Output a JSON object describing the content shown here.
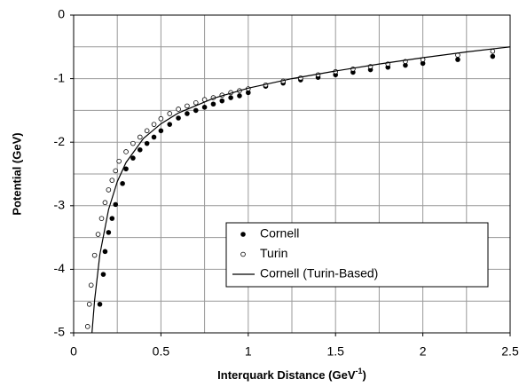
{
  "chart_data": {
    "type": "scatter",
    "x_label": [
      "Interquark Distance (GeV",
      "-1",
      ")"
    ],
    "y_label": "Potential (GeV)",
    "xlim": [
      0,
      2.5
    ],
    "ylim": [
      -5,
      0
    ],
    "xticks": [
      0,
      0.5,
      1,
      1.5,
      2,
      2.5
    ],
    "yticks": [
      -5,
      -4,
      -3,
      -2,
      -1,
      0
    ],
    "x_grid": [
      0.25,
      0.5,
      0.75,
      1,
      1.25,
      1.5,
      1.75,
      2,
      2.25
    ],
    "y_grid": [
      -4.5,
      -4,
      -3.5,
      -3,
      -2.5,
      -2,
      -1.5,
      -1,
      -0.5
    ],
    "grid": true,
    "legend": "lower right",
    "series": [
      {
        "name": "Cornell",
        "color": "#000000",
        "marker": "filled",
        "x": [
          0.15,
          0.17,
          0.18,
          0.2,
          0.22,
          0.24,
          0.28,
          0.3,
          0.34,
          0.38,
          0.42,
          0.46,
          0.5,
          0.55,
          0.6,
          0.65,
          0.7,
          0.75,
          0.8,
          0.85,
          0.9,
          0.95,
          1.0,
          1.1,
          1.2,
          1.3,
          1.4,
          1.5,
          1.6,
          1.7,
          1.8,
          1.9,
          2.0,
          2.2,
          2.4
        ],
        "values": [
          -4.55,
          -4.08,
          -3.72,
          -3.42,
          -3.2,
          -2.98,
          -2.65,
          -2.42,
          -2.25,
          -2.12,
          -2.02,
          -1.92,
          -1.82,
          -1.72,
          -1.62,
          -1.55,
          -1.5,
          -1.45,
          -1.4,
          -1.35,
          -1.3,
          -1.27,
          -1.22,
          -1.12,
          -1.07,
          -1.02,
          -0.98,
          -0.94,
          -0.9,
          -0.86,
          -0.82,
          -0.79,
          -0.76,
          -0.7,
          -0.65
        ]
      },
      {
        "name": "Turin",
        "color": "#000000",
        "marker": "open",
        "x": [
          0.08,
          0.09,
          0.1,
          0.12,
          0.14,
          0.16,
          0.18,
          0.2,
          0.22,
          0.24,
          0.26,
          0.3,
          0.34,
          0.38,
          0.42,
          0.46,
          0.5,
          0.55,
          0.6,
          0.65,
          0.7,
          0.75,
          0.8,
          0.85,
          0.9,
          0.95,
          1.0,
          1.1,
          1.2,
          1.3,
          1.4,
          1.5,
          1.6,
          1.7,
          1.8,
          1.9,
          2.0,
          2.2,
          2.4
        ],
        "values": [
          -4.9,
          -4.55,
          -4.25,
          -3.78,
          -3.45,
          -3.2,
          -2.95,
          -2.75,
          -2.6,
          -2.45,
          -2.3,
          -2.15,
          -2.02,
          -1.92,
          -1.82,
          -1.72,
          -1.63,
          -1.55,
          -1.48,
          -1.43,
          -1.38,
          -1.33,
          -1.3,
          -1.26,
          -1.22,
          -1.19,
          -1.16,
          -1.1,
          -1.04,
          -0.99,
          -0.94,
          -0.89,
          -0.85,
          -0.81,
          -0.77,
          -0.73,
          -0.7,
          -0.63,
          -0.57
        ]
      },
      {
        "name": "Cornell (Turin-Based)",
        "color": "#000000",
        "marker": "none",
        "x": [
          0.105,
          0.12,
          0.15,
          0.2,
          0.25,
          0.3,
          0.4,
          0.5,
          0.6,
          0.8,
          1,
          1.25,
          1.5,
          1.75,
          2,
          2.25,
          2.5
        ],
        "values": [
          -5.0,
          -4.49,
          -3.77,
          -3.06,
          -2.62,
          -2.32,
          -1.94,
          -1.71,
          -1.54,
          -1.31,
          -1.15,
          -1.0,
          -0.88,
          -0.77,
          -0.67,
          -0.58,
          -0.5
        ]
      }
    ]
  }
}
